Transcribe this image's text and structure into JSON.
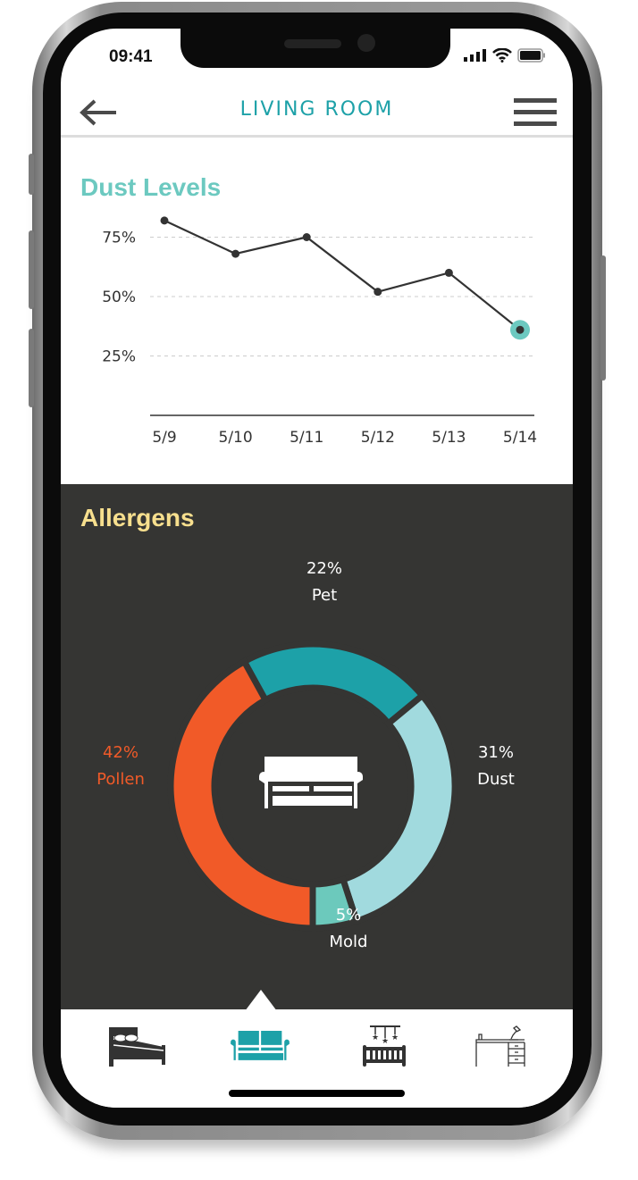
{
  "status_bar": {
    "time": "09:41"
  },
  "header": {
    "title": "LIVING ROOM"
  },
  "dust": {
    "title": "Dust Levels"
  },
  "chart_data": {
    "type": "line",
    "title": "Dust Levels",
    "categories": [
      "5/9",
      "5/10",
      "5/11",
      "5/12",
      "5/13",
      "5/14"
    ],
    "values": [
      82,
      68,
      75,
      52,
      60,
      36
    ],
    "yticks": [
      "25%",
      "50%",
      "75%"
    ],
    "ylim": [
      0,
      100
    ],
    "grid": true,
    "line_color": "#333333",
    "highlight_color": "#6cc9c0"
  },
  "allergens": {
    "title": "Allergens",
    "chart_data": {
      "type": "pie",
      "slices": [
        {
          "name": "Pet",
          "value": 22,
          "label": "22%",
          "color": "#1da1a8"
        },
        {
          "name": "Dust",
          "value": 31,
          "label": "31%",
          "color": "#a1dade"
        },
        {
          "name": "Mold",
          "value": 5,
          "label": "5%",
          "color": "#6cc9bc"
        },
        {
          "name": "Pollen",
          "value": 42,
          "label": "42%",
          "color": "#f15a28"
        }
      ]
    },
    "center_icon": "sofa-icon"
  },
  "tabs": [
    {
      "icon": "bed-icon"
    },
    {
      "icon": "sofa-icon",
      "active": true
    },
    {
      "icon": "crib-icon"
    },
    {
      "icon": "desk-icon"
    }
  ]
}
